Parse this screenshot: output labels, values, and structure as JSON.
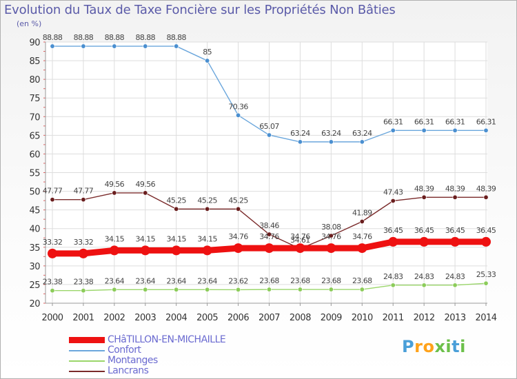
{
  "title": "Evolution du Taux de Taxe Foncière sur les Propriétés Non Bâties",
  "unit_label": "(en %)",
  "logo": "Proxiti",
  "colors": {
    "primary": "#ee1111",
    "confort": "#6aa6dc",
    "montanges": "#9ad66a",
    "lancrans": "#7a2a2a",
    "axis_text": "#333333",
    "grid": "#dddddd",
    "label_text": "#444444"
  },
  "chart_data": {
    "type": "line",
    "title": "Evolution du Taux de Taxe Foncière sur les Propriétés Non Bâties",
    "xlabel": "",
    "ylabel": "(en %)",
    "ylim": [
      20,
      90
    ],
    "yticks": [
      20,
      25,
      30,
      35,
      40,
      45,
      50,
      55,
      60,
      65,
      70,
      75,
      80,
      85,
      90
    ],
    "grid": true,
    "legend_position": "bottom-left",
    "x": [
      "2000",
      "2001",
      "2002",
      "2003",
      "2004",
      "2005",
      "2006",
      "2007",
      "2008",
      "2009",
      "2010",
      "2011",
      "2012",
      "2013",
      "2014"
    ],
    "series": [
      {
        "name": "CHâTILLON-EN-MICHAILLE",
        "color": "#ee1111",
        "values": [
          33.32,
          33.32,
          34.15,
          34.15,
          34.15,
          34.15,
          34.76,
          34.76,
          34.76,
          34.76,
          34.76,
          36.45,
          36.45,
          36.45,
          36.45
        ],
        "labels": [
          "33.32",
          "33.32",
          "34.15",
          "34.15",
          "34.15",
          "34.15",
          "34.76",
          "34.76",
          "34.76",
          "34.76",
          "34.76",
          "36.45",
          "36.45",
          "36.45",
          "36.45"
        ]
      },
      {
        "name": "Confort",
        "color": "#6aa6dc",
        "values": [
          88.88,
          88.88,
          88.88,
          88.88,
          88.88,
          85,
          70.36,
          65.07,
          63.24,
          63.24,
          63.24,
          66.31,
          66.31,
          66.31,
          66.31
        ],
        "labels": [
          "88.88",
          "88.88",
          "88.88",
          "88.88",
          "88.88",
          "85",
          "70.36",
          "65.07",
          "63.24",
          "63.24",
          "63.24",
          "66.31",
          "66.31",
          "66.31",
          "66.31"
        ]
      },
      {
        "name": "Montanges",
        "color": "#9ad66a",
        "values": [
          23.38,
          23.38,
          23.64,
          23.64,
          23.64,
          23.64,
          23.62,
          23.68,
          23.68,
          23.68,
          23.68,
          24.83,
          24.83,
          24.83,
          25.33
        ],
        "labels": [
          "23.38",
          "23.38",
          "23.64",
          "23.64",
          "23.64",
          "23.64",
          "23.62",
          "23.68",
          "23.68",
          "23.68",
          "23.68",
          "24.83",
          "24.83",
          "24.83",
          "25.33"
        ]
      },
      {
        "name": "Lancrans",
        "color": "#7a2a2a",
        "values": [
          47.77,
          47.77,
          49.56,
          49.56,
          45.25,
          45.25,
          45.25,
          38.46,
          34.61,
          38.08,
          41.89,
          47.43,
          48.39,
          48.39,
          48.39
        ],
        "labels": [
          "47.77",
          "47.77",
          "49.56",
          "49.56",
          "45.25",
          "45.25",
          "45.25",
          "38.46",
          "34.61",
          "38.08",
          "41.89",
          "47.43",
          "48.39",
          "48.39",
          "48.39"
        ]
      }
    ]
  }
}
